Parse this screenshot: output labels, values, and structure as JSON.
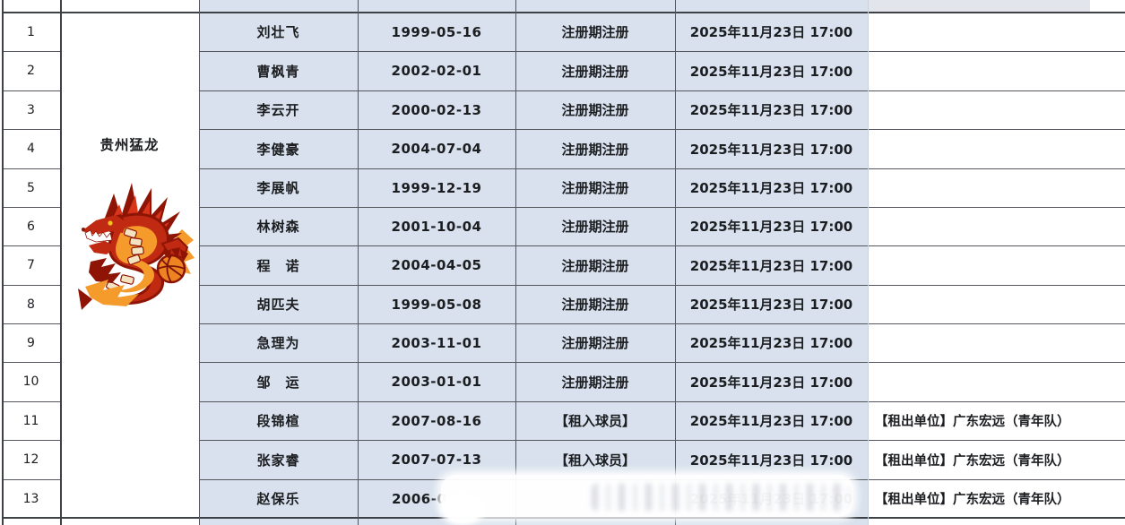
{
  "app": {
    "type": "spreadsheet-roster-table",
    "language": "zh-CN"
  },
  "team": {
    "name": "贵州猛龙",
    "logo": "red-dragon-with-basketball-logo"
  },
  "table": {
    "columns": [
      "row-number",
      "team",
      "player-name",
      "birth-date",
      "registration-type",
      "registration-time",
      "note"
    ],
    "registration_time_all": "2025年11月23日 17:00",
    "loan_note": "【租出单位】广东宏远（青年队）",
    "rows": [
      {
        "num": "1",
        "name": "刘壮飞",
        "birth": "1999-05-16",
        "reg": "注册期注册",
        "time": "2025年11月23日 17:00",
        "note": ""
      },
      {
        "num": "2",
        "name": "曹枫青",
        "birth": "2002-02-01",
        "reg": "注册期注册",
        "time": "2025年11月23日 17:00",
        "note": ""
      },
      {
        "num": "3",
        "name": "李云开",
        "birth": "2000-02-13",
        "reg": "注册期注册",
        "time": "2025年11月23日 17:00",
        "note": ""
      },
      {
        "num": "4",
        "name": "李健豪",
        "birth": "2004-07-04",
        "reg": "注册期注册",
        "time": "2025年11月23日 17:00",
        "note": ""
      },
      {
        "num": "5",
        "name": "李展帆",
        "birth": "1999-12-19",
        "reg": "注册期注册",
        "time": "2025年11月23日 17:00",
        "note": ""
      },
      {
        "num": "6",
        "name": "林树森",
        "birth": "2001-10-04",
        "reg": "注册期注册",
        "time": "2025年11月23日 17:00",
        "note": ""
      },
      {
        "num": "7",
        "name": "程　诺",
        "birth": "2004-04-05",
        "reg": "注册期注册",
        "time": "2025年11月23日 17:00",
        "note": ""
      },
      {
        "num": "8",
        "name": "胡匹夫",
        "birth": "1999-05-08",
        "reg": "注册期注册",
        "time": "2025年11月23日 17:00",
        "note": ""
      },
      {
        "num": "9",
        "name": "急理为",
        "birth": "2003-11-01",
        "reg": "注册期注册",
        "time": "2025年11月23日 17:00",
        "note": ""
      },
      {
        "num": "10",
        "name": "邹　运",
        "birth": "2003-01-01",
        "reg": "注册期注册",
        "time": "2025年11月23日 17:00",
        "note": ""
      },
      {
        "num": "11",
        "name": "段锦楦",
        "birth": "2007-08-16",
        "reg": "【租入球员】",
        "time": "2025年11月23日 17:00",
        "note": "【租出单位】广东宏远（青年队）"
      },
      {
        "num": "12",
        "name": "张家睿",
        "birth": "2007-07-13",
        "reg": "【租入球员】",
        "time": "2025年11月23日 17:00",
        "note": "【租出单位】广东宏远（青年队）"
      },
      {
        "num": "13",
        "name": "赵保乐",
        "birth": "2006-0",
        "birth_partial": true,
        "reg": "",
        "blurred": true,
        "time": "2025年11月23日 17:00",
        "note": "【租出单位】广东宏远（青年队）"
      }
    ]
  },
  "colors": {
    "cell_blue": "#d8e1ed",
    "partial_header_gray": "#e2e6ec",
    "grid_dark": "#3e4146",
    "grid": "#54585e",
    "text": "#1b1d20",
    "logo_dark_red": "#8e1405",
    "logo_red": "#c02a12",
    "logo_bright_red": "#d8351a",
    "logo_orange": "#f59b2b",
    "ball_orange": "#ee8322",
    "belly_cream": "#f4e3c0"
  }
}
